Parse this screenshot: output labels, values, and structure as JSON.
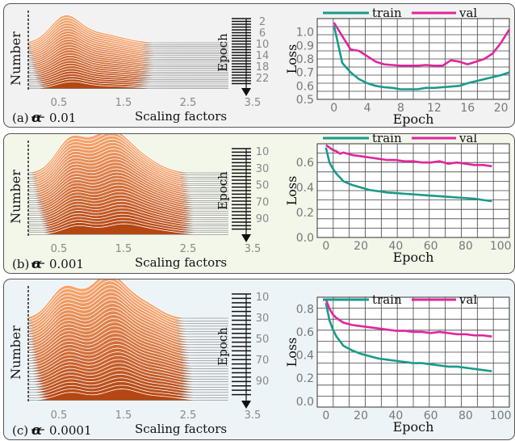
{
  "colors": {
    "train": "#1a9a8a",
    "val": "#e0269c",
    "ridge_dark": "#b54712",
    "ridge_light": "#f7a56e"
  },
  "chart_data": [
    {
      "type": "ridgeline",
      "caption_label": "(a)",
      "alpha_symbol": "α",
      "caption_value": "0.01",
      "xlabel": "Scaling factors",
      "ylabel": "Number",
      "epoch_label": "Epoch",
      "xticks": [
        "0.5",
        "1.5",
        "2.5",
        "3.5"
      ],
      "epoch_ticks": [
        "2",
        "6",
        "10",
        "14",
        "18",
        "22"
      ],
      "background": "#f2f2f2"
    },
    {
      "type": "line",
      "legend": [
        "train",
        "val"
      ],
      "xlabel": "Epoch",
      "ylabel": "Loss",
      "xlim": [
        -2,
        21
      ],
      "ylim": [
        0.5,
        1.1
      ],
      "xticks": [
        0,
        4,
        8,
        12,
        16,
        20
      ],
      "yticks": [
        0.5,
        0.6,
        0.7,
        0.8,
        0.9,
        1.0
      ],
      "ytick_labels": [
        "0.5",
        "0.6",
        "0.7",
        "0.8",
        "0.9",
        "1.0"
      ],
      "series": [
        {
          "name": "train",
          "x": [
            0,
            1,
            2,
            3,
            4,
            5,
            6,
            7,
            8,
            9,
            10,
            11,
            12,
            13,
            14,
            15,
            16,
            17,
            18,
            19,
            20,
            21
          ],
          "values": [
            1.05,
            0.77,
            0.7,
            0.65,
            0.62,
            0.6,
            0.59,
            0.585,
            0.575,
            0.575,
            0.575,
            0.585,
            0.585,
            0.59,
            0.595,
            0.6,
            0.62,
            0.635,
            0.65,
            0.665,
            0.68,
            0.7
          ]
        },
        {
          "name": "val",
          "x": [
            0,
            1,
            2,
            3,
            4,
            5,
            6,
            7,
            8,
            9,
            10,
            11,
            12,
            13,
            14,
            15,
            16,
            17,
            18,
            19,
            20,
            21
          ],
          "values": [
            1.07,
            0.97,
            0.87,
            0.86,
            0.82,
            0.78,
            0.76,
            0.755,
            0.75,
            0.75,
            0.75,
            0.755,
            0.75,
            0.75,
            0.79,
            0.78,
            0.76,
            0.78,
            0.8,
            0.84,
            0.92,
            1.02
          ]
        }
      ],
      "background": "#f2f2f2"
    },
    {
      "type": "ridgeline",
      "caption_label": "(b)",
      "alpha_symbol": "α",
      "caption_value": "0.001",
      "xlabel": "Scaling factors",
      "ylabel": "Number",
      "epoch_label": "Epoch",
      "xticks": [
        "0.5",
        "1.5",
        "2.5",
        "3.5"
      ],
      "epoch_ticks": [
        "10",
        "30",
        "50",
        "70",
        "90"
      ],
      "background": "#f3f7ea"
    },
    {
      "type": "line",
      "legend": [
        "train",
        "val"
      ],
      "xlabel": "Epoch",
      "ylabel": "Loss",
      "xlim": [
        -5,
        105
      ],
      "ylim": [
        0.0,
        0.75
      ],
      "xticks": [
        0,
        20,
        40,
        60,
        80,
        100
      ],
      "yticks": [
        0.0,
        0.2,
        0.4,
        0.6
      ],
      "ytick_labels": [
        "0.0",
        "0.2",
        "0.4",
        "0.6"
      ],
      "series": [
        {
          "name": "train",
          "x": [
            0,
            2,
            4,
            6,
            8,
            10,
            15,
            20,
            25,
            30,
            35,
            40,
            45,
            50,
            55,
            60,
            65,
            70,
            75,
            80,
            85,
            90,
            95
          ],
          "values": [
            0.72,
            0.6,
            0.55,
            0.51,
            0.48,
            0.45,
            0.42,
            0.4,
            0.38,
            0.37,
            0.36,
            0.355,
            0.35,
            0.345,
            0.34,
            0.335,
            0.33,
            0.325,
            0.32,
            0.315,
            0.31,
            0.3,
            0.29
          ]
        },
        {
          "name": "val",
          "x": [
            0,
            2,
            4,
            6,
            8,
            10,
            15,
            20,
            25,
            30,
            35,
            40,
            45,
            50,
            55,
            60,
            65,
            70,
            75,
            80,
            85,
            90,
            95
          ],
          "values": [
            0.74,
            0.72,
            0.7,
            0.69,
            0.67,
            0.68,
            0.66,
            0.65,
            0.64,
            0.63,
            0.62,
            0.62,
            0.61,
            0.61,
            0.6,
            0.6,
            0.61,
            0.59,
            0.6,
            0.59,
            0.58,
            0.58,
            0.57
          ]
        }
      ],
      "background": "#f3f7ea"
    },
    {
      "type": "ridgeline",
      "caption_label": "(c)",
      "alpha_symbol": "α",
      "caption_value": "0.0001",
      "xlabel": "Scaling factors",
      "ylabel": "Number",
      "epoch_label": "Epoch",
      "xticks": [
        "0.5",
        "1.5",
        "2.5",
        "3.5"
      ],
      "epoch_ticks": [
        "10",
        "30",
        "50",
        "70",
        "90"
      ],
      "background": "#edf4f8"
    },
    {
      "type": "line",
      "legend": [
        "train",
        "val"
      ],
      "xlabel": "Epoch",
      "ylabel": "Loss",
      "xlim": [
        -5,
        105
      ],
      "ylim": [
        -0.05,
        0.9
      ],
      "xticks": [
        0,
        20,
        40,
        60,
        80,
        100
      ],
      "yticks": [
        0.0,
        0.2,
        0.4,
        0.6,
        0.8
      ],
      "ytick_labels": [
        "0.0",
        "0.2",
        "0.4",
        "0.6",
        "0.8"
      ],
      "series": [
        {
          "name": "train",
          "x": [
            0,
            2,
            4,
            6,
            8,
            10,
            15,
            20,
            25,
            30,
            35,
            40,
            45,
            50,
            55,
            60,
            65,
            70,
            75,
            80,
            85,
            90,
            95
          ],
          "values": [
            0.85,
            0.7,
            0.62,
            0.56,
            0.52,
            0.48,
            0.44,
            0.41,
            0.39,
            0.37,
            0.36,
            0.35,
            0.34,
            0.33,
            0.33,
            0.32,
            0.31,
            0.3,
            0.3,
            0.29,
            0.28,
            0.27,
            0.26
          ]
        },
        {
          "name": "val",
          "x": [
            0,
            2,
            4,
            6,
            8,
            10,
            15,
            20,
            25,
            30,
            35,
            40,
            45,
            50,
            55,
            60,
            65,
            70,
            75,
            80,
            85,
            90,
            95
          ],
          "values": [
            0.88,
            0.8,
            0.75,
            0.72,
            0.7,
            0.68,
            0.66,
            0.65,
            0.64,
            0.63,
            0.62,
            0.61,
            0.61,
            0.6,
            0.6,
            0.59,
            0.6,
            0.59,
            0.58,
            0.58,
            0.57,
            0.57,
            0.56
          ]
        }
      ],
      "background": "#edf4f8"
    }
  ]
}
